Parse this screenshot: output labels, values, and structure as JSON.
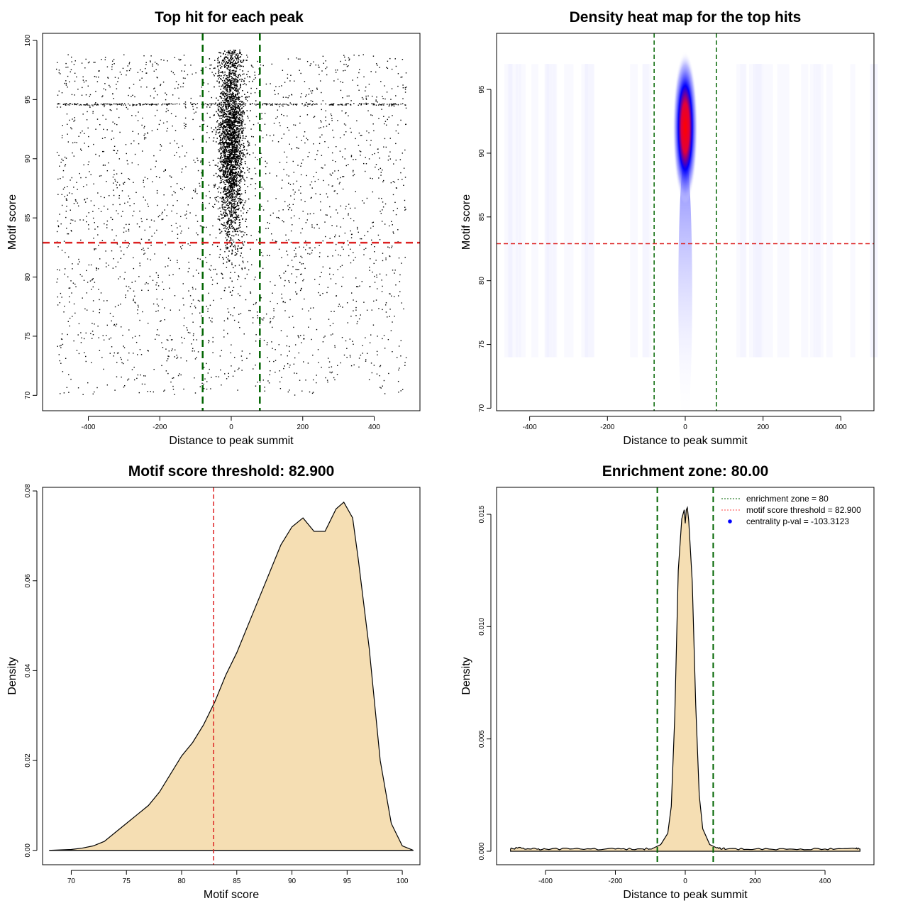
{
  "chart_data": [
    {
      "id": "scatter",
      "type": "scatter",
      "title": "Top hit for each peak",
      "xlabel": "Distance to peak summit",
      "ylabel": "Motif score",
      "xlim": [
        -528,
        528
      ],
      "ylim": [
        68.7,
        100.6
      ],
      "xticks": [
        -400,
        -200,
        0,
        200,
        400
      ],
      "yticks": [
        70,
        75,
        80,
        85,
        90,
        95,
        100
      ],
      "vlines": [
        -80,
        80
      ],
      "hline": 82.9,
      "points": {
        "description_free": true,
        "background_uniform_x": [
          -490,
          490
        ],
        "background_y_range": [
          70,
          98.8
        ],
        "central_sd_x": 18,
        "central_y_range": [
          73,
          99.2
        ],
        "repeated_score_row": 94.6
      },
      "colors": {
        "points": "#000000",
        "vlines": "#006400",
        "hline": "#dd2222"
      }
    },
    {
      "id": "heatmap",
      "type": "heatmap",
      "title": "Density heat map for the top hits",
      "xlabel": "Distance to peak summit",
      "ylabel": "Motif score",
      "xlim": [
        -485,
        485
      ],
      "ylim": [
        69.8,
        99.4
      ],
      "xticks": [
        -400,
        -200,
        0,
        200,
        400
      ],
      "yticks": [
        70,
        75,
        80,
        85,
        90,
        95
      ],
      "vlines": [
        -80,
        80
      ],
      "hline": 82.9,
      "peak": {
        "x": 0,
        "y": 92,
        "sd_x": 18,
        "sd_y": 4
      },
      "colors": {
        "low": "#ffffff",
        "mid": "#0000ff",
        "high": "#ff0000",
        "vlines": "#006400",
        "hline": "#dd2222"
      }
    },
    {
      "id": "score_density",
      "type": "area",
      "title": "Motif score threshold: 82.900",
      "xlabel": "Motif score",
      "ylabel": "Density",
      "xlim": [
        67.4,
        101.6
      ],
      "ylim": [
        -0.0032,
        0.0808
      ],
      "xticks": [
        70,
        75,
        80,
        85,
        90,
        95,
        100
      ],
      "yticks": [
        0.0,
        0.02,
        0.04,
        0.06,
        0.08
      ],
      "ytick_labels": [
        "0.00",
        "0.02",
        "0.04",
        "0.06",
        "0.08"
      ],
      "vline": 82.9,
      "x": [
        68,
        70,
        71,
        72,
        73,
        74,
        75,
        76,
        77,
        78,
        79,
        80,
        81,
        82,
        83,
        84,
        85,
        86,
        87,
        88,
        89,
        90,
        91,
        92,
        93,
        94,
        94.7,
        95.5,
        96,
        97,
        98,
        99,
        100,
        101
      ],
      "y": [
        0.0,
        0.0002,
        0.0005,
        0.001,
        0.002,
        0.004,
        0.006,
        0.008,
        0.01,
        0.013,
        0.017,
        0.021,
        0.024,
        0.028,
        0.033,
        0.039,
        0.044,
        0.05,
        0.056,
        0.062,
        0.068,
        0.072,
        0.074,
        0.071,
        0.071,
        0.076,
        0.0775,
        0.074,
        0.065,
        0.045,
        0.02,
        0.006,
        0.001,
        0.0
      ],
      "colors": {
        "fill": "#f5deb3",
        "line": "#000000",
        "vline": "#dd2222"
      }
    },
    {
      "id": "distance_density",
      "type": "area",
      "title": "Enrichment zone: 80.00",
      "xlabel": "Distance to peak summit",
      "ylabel": "Density",
      "xlim": [
        -540,
        540
      ],
      "ylim": [
        -0.0006,
        0.0162
      ],
      "xticks": [
        -400,
        -200,
        0,
        200,
        400
      ],
      "yticks": [
        0.0,
        0.005,
        0.01,
        0.015
      ],
      "ytick_labels": [
        "0.000",
        "0.005",
        "0.010",
        "0.015"
      ],
      "vlines": [
        -80,
        80
      ],
      "x": [
        -500,
        -480,
        -440,
        -400,
        -300,
        -200,
        -120,
        -90,
        -70,
        -50,
        -40,
        -30,
        -20,
        -10,
        -3,
        0,
        3,
        6,
        10,
        20,
        30,
        40,
        50,
        70,
        90,
        120,
        200,
        300,
        400,
        480,
        500
      ],
      "y": [
        0.0001,
        0.00014,
        0.0001,
        0.0001,
        0.0001,
        0.0001,
        0.0001,
        0.00015,
        0.0003,
        0.0008,
        0.002,
        0.006,
        0.0125,
        0.0148,
        0.0152,
        0.0146,
        0.0152,
        0.0153,
        0.0147,
        0.012,
        0.0065,
        0.0025,
        0.001,
        0.0003,
        0.00015,
        0.0001,
        0.0001,
        0.0001,
        0.0001,
        0.00014,
        0.0001
      ],
      "legend": [
        {
          "label": "enrichment zone = 80",
          "kind": "dotted",
          "color": "#006400"
        },
        {
          "label": "motif score threshold = 82.900",
          "kind": "dotted",
          "color": "#ff4444"
        },
        {
          "label": "centrality p-val = -103.3123",
          "kind": "point",
          "color": "#0000ff"
        }
      ],
      "colors": {
        "fill": "#f5deb3",
        "line": "#000000",
        "vlines": "#006400"
      }
    }
  ]
}
